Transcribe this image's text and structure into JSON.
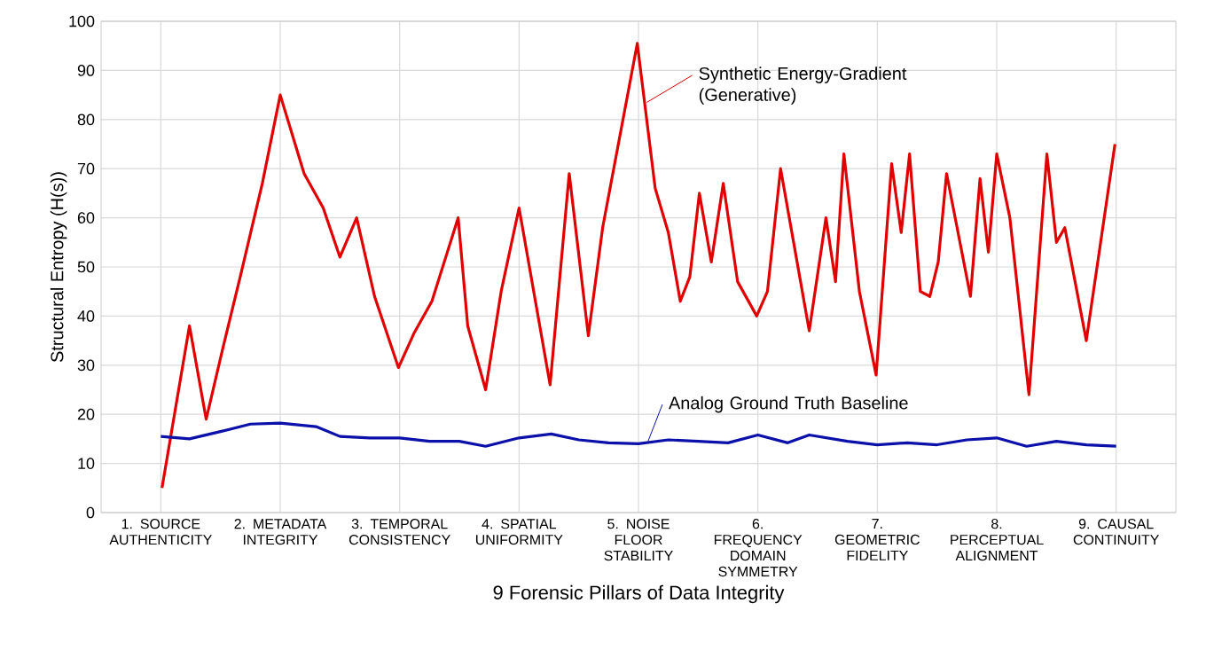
{
  "chart_data": {
    "type": "line",
    "xlabel": "9 Forensic Pillars of Data Integrity",
    "ylabel": "Structural Entropy (H(s))",
    "xlim": [
      0.5,
      9.5
    ],
    "ylim": [
      0,
      100
    ],
    "xticks": [
      {
        "value": 1,
        "label": "1. SOURCE AUTHENTICITY"
      },
      {
        "value": 2,
        "label": "2. METADATA INTEGRITY"
      },
      {
        "value": 3,
        "label": "3. TEMPORAL CONSISTENCY"
      },
      {
        "value": 4,
        "label": "4. SPATIAL UNIFORMITY"
      },
      {
        "value": 5,
        "label": "5. NOISE FLOOR STABILITY"
      },
      {
        "value": 6,
        "label": "6. FREQUENCY DOMAIN SYMMETRY"
      },
      {
        "value": 7,
        "label": "7. GEOMETRIC FIDELITY"
      },
      {
        "value": 8,
        "label": "8. PERCEPTUAL ALIGNMENT"
      },
      {
        "value": 9,
        "label": "9. CAUSAL CONTINUITY"
      }
    ],
    "yticks": [
      0,
      10,
      20,
      30,
      40,
      50,
      60,
      70,
      80,
      90,
      100
    ],
    "grid": true,
    "legend": "top",
    "marker": "none",
    "line_style": "solid",
    "series": [
      {
        "name": "Synthetic Energy-Gradient (Generative)",
        "color": "#e00000",
        "x": [
          1.01,
          1.24,
          1.38,
          1.52,
          1.67,
          1.85,
          2.0,
          2.2,
          2.36,
          2.5,
          2.64,
          2.79,
          2.99,
          3.12,
          3.27,
          3.49,
          3.57,
          3.72,
          3.85,
          4.0,
          4.26,
          4.42,
          4.58,
          4.7,
          4.99,
          5.14,
          5.25,
          5.35,
          5.43,
          5.51,
          5.61,
          5.71,
          5.83,
          5.99,
          6.08,
          6.19,
          6.43,
          6.57,
          6.65,
          6.72,
          6.85,
          6.99,
          7.12,
          7.2,
          7.27,
          7.36,
          7.44,
          7.51,
          7.58,
          7.78,
          7.86,
          7.93,
          8.0,
          8.11,
          8.27,
          8.42,
          8.5,
          8.57,
          8.75,
          8.99
        ],
        "values": [
          5,
          38,
          19,
          33.5,
          48.5,
          67,
          85,
          69,
          62,
          52,
          60,
          44,
          29.5,
          36.5,
          43,
          60,
          38,
          25,
          45,
          62,
          26,
          69,
          36,
          58,
          95.5,
          66,
          57,
          43,
          48,
          65,
          51,
          67,
          47,
          40,
          45,
          70,
          37,
          60,
          47,
          73,
          45,
          28,
          71,
          57,
          73,
          45,
          44,
          51,
          69,
          44,
          68,
          53,
          73,
          60,
          24,
          73,
          55,
          58,
          35,
          75
        ]
      },
      {
        "name": "Analog Ground Truth Baseline",
        "color": "#0a10a8",
        "x": [
          1.0,
          1.24,
          1.5,
          1.75,
          2.0,
          2.3,
          2.5,
          2.75,
          3.0,
          3.25,
          3.5,
          3.72,
          4.0,
          4.27,
          4.5,
          4.75,
          5.0,
          5.25,
          5.5,
          5.75,
          6.0,
          6.25,
          6.43,
          6.75,
          7.0,
          7.25,
          7.5,
          7.75,
          8.0,
          8.25,
          8.5,
          8.75,
          9.0
        ],
        "values": [
          15.5,
          15,
          16.5,
          18,
          18.2,
          17.5,
          15.5,
          15.2,
          15.2,
          14.5,
          14.5,
          13.5,
          15.2,
          16,
          14.8,
          14.2,
          14,
          14.8,
          14.5,
          14.2,
          15.8,
          14.2,
          15.8,
          14.5,
          13.8,
          14.2,
          13.8,
          14.8,
          15.2,
          13.5,
          14.5,
          13.8,
          13.5
        ]
      }
    ]
  }
}
